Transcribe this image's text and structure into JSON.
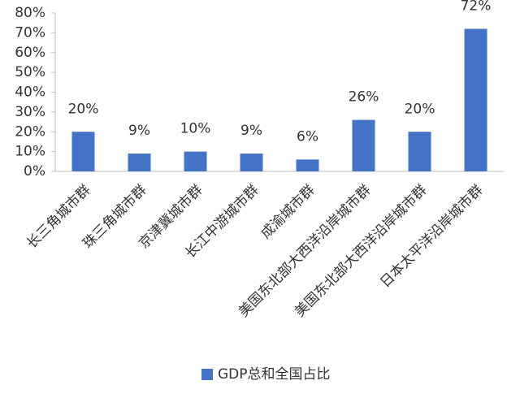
{
  "chart_data": {
    "type": "bar",
    "categories": [
      "长三角城市群",
      "珠三角城市群",
      "京津冀城市群",
      "长江中游城市群",
      "成渝城市群",
      "美国东北部大西洋沿岸城市群",
      "美国东北部大西洋沿岸城市群",
      "日本太平洋沿岸城市群"
    ],
    "series": [
      {
        "name": "GDP总和全国占比",
        "color": "#4472c4",
        "values": [
          20,
          9,
          10,
          9,
          6,
          26,
          20,
          72
        ],
        "value_labels": [
          "20%",
          "9%",
          "10%",
          "9%",
          "6%",
          "26%",
          "20%",
          "72%"
        ]
      }
    ],
    "ylim": [
      0,
      80
    ],
    "yticks": [
      {
        "value": 0,
        "label": "0%"
      },
      {
        "value": 10,
        "label": "10%"
      },
      {
        "value": 20,
        "label": "20%"
      },
      {
        "value": 30,
        "label": "30%"
      },
      {
        "value": 40,
        "label": "40%"
      },
      {
        "value": 50,
        "label": "50%"
      },
      {
        "value": 60,
        "label": "60%"
      },
      {
        "value": 70,
        "label": "70%"
      },
      {
        "value": 80,
        "label": "80%"
      }
    ],
    "legend": "bottom",
    "grid": false
  }
}
